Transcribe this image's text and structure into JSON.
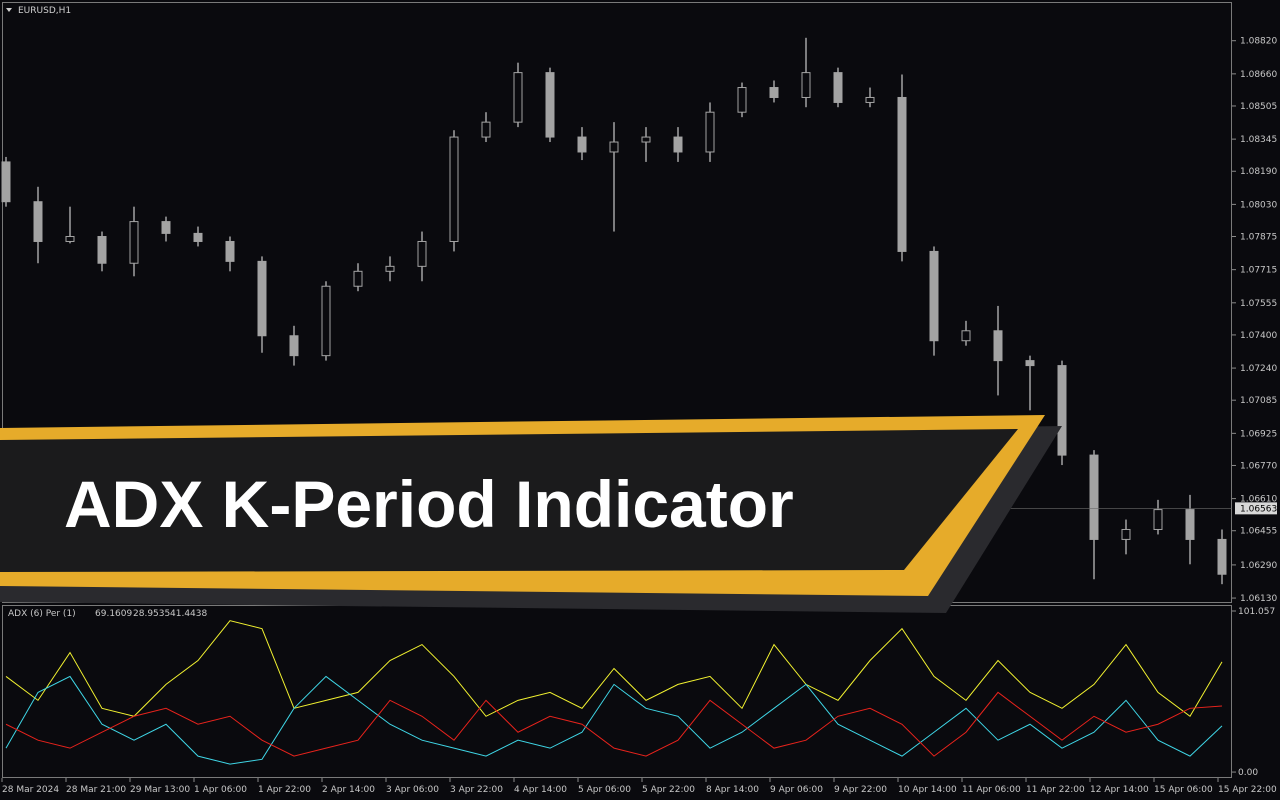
{
  "chart_data": [
    {
      "type": "candlestick",
      "title": "EURUSD,H1",
      "categories": [
        "28 Mar 2024",
        null,
        "28 Mar 21:00",
        null,
        "29 Mar 13:00",
        null,
        "1 Apr 06:00",
        null,
        "1 Apr 22:00",
        null,
        "2 Apr 14:00",
        null,
        "3 Apr 06:00",
        null,
        "3 Apr 22:00",
        null,
        "4 Apr 14:00",
        null,
        "5 Apr 06:00",
        null,
        "5 Apr 22:00",
        null,
        "8 Apr 14:00",
        null,
        "9 Apr 06:00",
        null,
        "9 Apr 22:00",
        null,
        "10 Apr 14:00",
        null,
        "11 Apr 06:00",
        null,
        "11 Apr 22:00",
        null,
        "12 Apr 14:00",
        null,
        "15 Apr 06:00",
        null,
        "15 Apr 22:00"
      ],
      "open": [
        1.08235,
        1.08043,
        1.07851,
        1.07875,
        1.07746,
        1.07947,
        1.0789,
        1.07851,
        1.07755,
        1.07396,
        1.073,
        1.07635,
        1.07707,
        1.07731,
        1.07851,
        1.08355,
        1.08427,
        1.08666,
        1.08355,
        1.08283,
        1.08331,
        1.08355,
        1.08283,
        1.08475,
        1.08594,
        1.08546,
        1.08666,
        1.08522,
        1.08546,
        1.07803,
        1.07372,
        1.0742,
        1.07276,
        1.07252,
        1.0682,
        1.06413,
        1.06461,
        1.06557,
        1.06413
      ],
      "high": [
        1.08259,
        1.08115,
        1.08019,
        1.07899,
        1.08019,
        1.07971,
        1.07923,
        1.07875,
        1.07779,
        1.07444,
        1.07659,
        1.07746,
        1.07779,
        1.07899,
        1.08388,
        1.08475,
        1.08714,
        1.0869,
        1.08403,
        1.08427,
        1.08403,
        1.08403,
        1.08522,
        1.08618,
        1.08628,
        1.08834,
        1.0869,
        1.08594,
        1.08657,
        1.07827,
        1.07468,
        1.0754,
        1.073,
        1.07276,
        1.06844,
        1.06509,
        1.06604,
        1.06628,
        1.06461
      ],
      "low": [
        1.08019,
        1.07746,
        1.07842,
        1.07707,
        1.07683,
        1.07851,
        1.07827,
        1.07707,
        1.07314,
        1.07252,
        1.07276,
        1.07611,
        1.07659,
        1.07659,
        1.07803,
        1.08331,
        1.08403,
        1.08331,
        1.08244,
        1.07899,
        1.08235,
        1.08235,
        1.08235,
        1.08451,
        1.08522,
        1.08499,
        1.08499,
        1.08499,
        1.07755,
        1.073,
        1.07348,
        1.07108,
        1.07036,
        1.06772,
        1.06221,
        1.06341,
        1.06437,
        1.06293,
        1.06197
      ],
      "close": [
        1.08043,
        1.07851,
        1.07875,
        1.07746,
        1.07947,
        1.0789,
        1.07851,
        1.07755,
        1.07396,
        1.073,
        1.07635,
        1.07707,
        1.07731,
        1.07851,
        1.08355,
        1.08427,
        1.08666,
        1.08355,
        1.08283,
        1.08331,
        1.08355,
        1.08283,
        1.08475,
        1.08594,
        1.08546,
        1.08666,
        1.08522,
        1.08546,
        1.07803,
        1.07372,
        1.0742,
        1.07276,
        1.07252,
        1.0682,
        1.06413,
        1.06461,
        1.06557,
        1.06413,
        1.06245
      ],
      "color": "#a3a3a3",
      "ylim": [
        1.06111,
        1.09002
      ],
      "yticks": [
        {
          "value": 1.0882,
          "label": "1.08820"
        },
        {
          "value": 1.0866,
          "label": "1.08660"
        },
        {
          "value": 1.08505,
          "label": "1.08505"
        },
        {
          "value": 1.08345,
          "label": "1.08345"
        },
        {
          "value": 1.0819,
          "label": "1.08190"
        },
        {
          "value": 1.0803,
          "label": "1.08030"
        },
        {
          "value": 1.07875,
          "label": "1.07875"
        },
        {
          "value": 1.07715,
          "label": "1.07715"
        },
        {
          "value": 1.07555,
          "label": "1.07555"
        },
        {
          "value": 1.074,
          "label": "1.07400"
        },
        {
          "value": 1.0724,
          "label": "1.07240"
        },
        {
          "value": 1.07085,
          "label": "1.07085"
        },
        {
          "value": 1.06925,
          "label": "1.06925"
        },
        {
          "value": 1.0677,
          "label": "1.06770"
        },
        {
          "value": 1.0661,
          "label": "1.06610"
        },
        {
          "value": 1.06455,
          "label": "1.06455"
        },
        {
          "value": 1.0629,
          "label": "1.06290"
        },
        {
          "value": 1.0613,
          "label": "1.06130"
        }
      ],
      "current_price": {
        "value": 1.06563,
        "label": "1.06563"
      }
    },
    {
      "type": "line",
      "title": "ADX (6)  Per (1)",
      "series": [
        {
          "color": "#f2f230",
          "values": [
            60,
            45,
            75,
            40,
            35,
            55,
            70,
            95,
            90,
            40,
            45,
            50,
            70,
            80,
            60,
            35,
            45,
            50,
            40,
            65,
            45,
            55,
            60,
            40,
            80,
            55,
            45,
            70,
            90,
            60,
            45,
            70,
            50,
            40,
            55,
            80,
            50,
            35,
            69.1609
          ]
        },
        {
          "color": "#3fd6e6",
          "values": [
            15,
            50,
            60,
            30,
            20,
            30,
            10,
            5,
            8,
            40,
            60,
            45,
            30,
            20,
            15,
            10,
            20,
            15,
            25,
            55,
            40,
            35,
            15,
            25,
            40,
            55,
            30,
            20,
            10,
            25,
            40,
            20,
            30,
            15,
            25,
            45,
            20,
            10,
            28.9535
          ]
        },
        {
          "color": "#e8231c",
          "values": [
            30,
            20,
            15,
            25,
            35,
            40,
            30,
            35,
            20,
            10,
            15,
            20,
            45,
            35,
            20,
            45,
            25,
            35,
            30,
            15,
            10,
            20,
            45,
            30,
            15,
            20,
            35,
            40,
            30,
            10,
            25,
            50,
            35,
            20,
            35,
            25,
            30,
            40,
            41.4438
          ]
        }
      ],
      "ylim": [
        -3.1,
        104.2
      ],
      "yticks": [
        {
          "value": 101.057,
          "label": "101.057"
        },
        {
          "value": 0,
          "label": "0.00"
        }
      ]
    }
  ],
  "banner": {
    "title": "ADX K-Period Indicator"
  }
}
